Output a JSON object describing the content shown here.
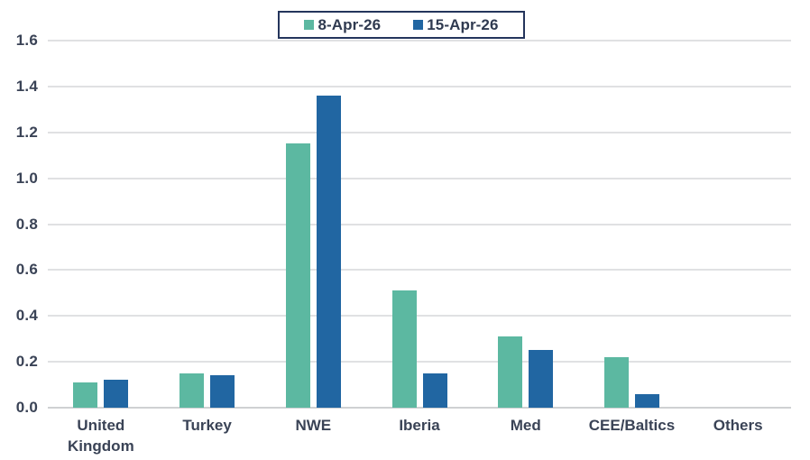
{
  "chart_data": {
    "type": "bar",
    "title": "",
    "categories": [
      "United Kingdom",
      "Turkey",
      "NWE",
      "Iberia",
      "Med",
      "CEE/Baltics",
      "Others"
    ],
    "series": [
      {
        "name": "8-Apr-26",
        "color": "#5cb8a1",
        "values": [
          0.11,
          0.15,
          1.15,
          0.51,
          0.31,
          0.22,
          0
        ]
      },
      {
        "name": "15-Apr-26",
        "color": "#2166a2",
        "values": [
          0.12,
          0.14,
          1.36,
          0.15,
          0.25,
          0.06,
          0
        ]
      }
    ],
    "xlabel": "",
    "ylabel": "",
    "ylim": [
      0,
      1.6
    ],
    "ytick_step": 0.2,
    "ytick_labels": [
      "0.0",
      "0.2",
      "0.4",
      "0.6",
      "0.8",
      "1.0",
      "1.2",
      "1.4",
      "1.6"
    ],
    "grid": true,
    "legend_position": "top-center"
  },
  "colors": {
    "series_1": "#5cb8a1",
    "series_2": "#2166a2",
    "text": "#3a4356",
    "gridline": "#e0e1e3",
    "axis_line": "#cfd1d3",
    "legend_border": "#24355c",
    "background": "#ffffff"
  }
}
